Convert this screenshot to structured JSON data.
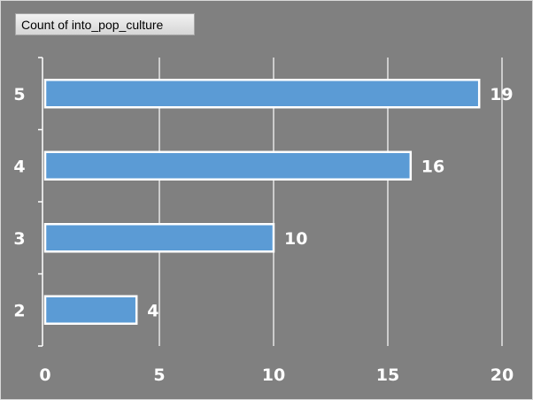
{
  "field_button": {
    "label": "Count of into_pop_culture"
  },
  "chart_data": {
    "type": "bar",
    "orientation": "horizontal",
    "categories": [
      "5",
      "4",
      "3",
      "2"
    ],
    "values": [
      19,
      16,
      10,
      4
    ],
    "title": "",
    "xlabel": "",
    "ylabel": "",
    "xlim": [
      0,
      20
    ],
    "x_ticks": [
      0,
      5,
      10,
      15,
      20
    ],
    "grid": true,
    "data_labels": true,
    "colors": {
      "bar_fill": "#5b9bd5",
      "bar_stroke": "#ffffff",
      "background": "#808080",
      "grid": "#ffffff",
      "text": "#ffffff"
    }
  }
}
